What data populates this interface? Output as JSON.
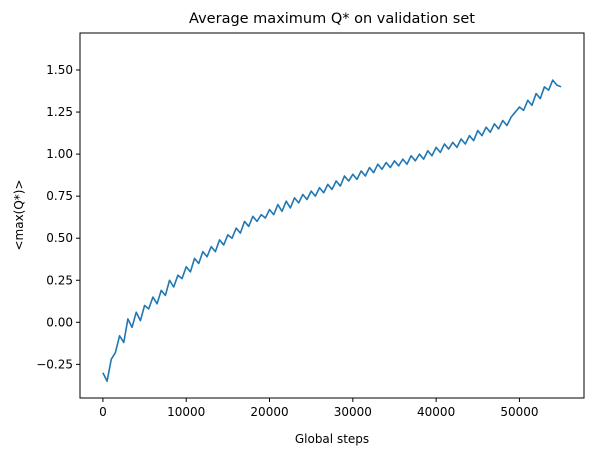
{
  "chart_data": {
    "type": "line",
    "title": "Average maximum Q* on validation set",
    "xlabel": "Global steps",
    "ylabel": "<max(Q*)>",
    "xlim": [
      -2750,
      57750
    ],
    "ylim": [
      -0.45,
      1.72
    ],
    "xticks": [
      0,
      10000,
      20000,
      30000,
      40000,
      50000
    ],
    "xtick_labels": [
      "0",
      "10000",
      "20000",
      "30000",
      "40000",
      "50000"
    ],
    "yticks": [
      -0.25,
      0,
      0.25,
      0.5,
      0.75,
      1.0,
      1.25,
      1.5
    ],
    "ytick_labels": [
      "−0.25",
      "0.00",
      "0.25",
      "0.50",
      "0.75",
      "1.00",
      "1.25",
      "1.50"
    ],
    "grid": false,
    "series": [
      {
        "name": "",
        "color": "#1f77b4",
        "x": [
          0,
          500,
          1000,
          1500,
          2000,
          2500,
          3000,
          3500,
          4000,
          4500,
          5000,
          5500,
          6000,
          6500,
          7000,
          7500,
          8000,
          8500,
          9000,
          9500,
          10000,
          10500,
          11000,
          11500,
          12000,
          12500,
          13000,
          13500,
          14000,
          14500,
          15000,
          15500,
          16000,
          16500,
          17000,
          17500,
          18000,
          18500,
          19000,
          19500,
          20000,
          20500,
          21000,
          21500,
          22000,
          22500,
          23000,
          23500,
          24000,
          24500,
          25000,
          25500,
          26000,
          26500,
          27000,
          27500,
          28000,
          28500,
          29000,
          29500,
          30000,
          30500,
          31000,
          31500,
          32000,
          32500,
          33000,
          33500,
          34000,
          34500,
          35000,
          35500,
          36000,
          36500,
          37000,
          37500,
          38000,
          38500,
          39000,
          39500,
          40000,
          40500,
          41000,
          41500,
          42000,
          42500,
          43000,
          43500,
          44000,
          44500,
          45000,
          45500,
          46000,
          46500,
          47000,
          47500,
          48000,
          48500,
          49000,
          49500,
          50000,
          50500,
          51000,
          51500,
          52000,
          52500,
          53000,
          53500,
          54000,
          54500,
          55000
        ],
        "y": [
          -0.3,
          -0.35,
          -0.22,
          -0.18,
          -0.08,
          -0.12,
          0.02,
          -0.03,
          0.06,
          0.01,
          0.1,
          0.08,
          0.15,
          0.11,
          0.19,
          0.16,
          0.25,
          0.21,
          0.28,
          0.26,
          0.33,
          0.3,
          0.38,
          0.35,
          0.42,
          0.39,
          0.45,
          0.42,
          0.49,
          0.46,
          0.52,
          0.5,
          0.56,
          0.53,
          0.6,
          0.57,
          0.63,
          0.6,
          0.64,
          0.62,
          0.67,
          0.64,
          0.7,
          0.66,
          0.72,
          0.68,
          0.74,
          0.71,
          0.76,
          0.73,
          0.78,
          0.75,
          0.8,
          0.77,
          0.82,
          0.79,
          0.84,
          0.81,
          0.87,
          0.84,
          0.88,
          0.85,
          0.9,
          0.87,
          0.92,
          0.89,
          0.94,
          0.91,
          0.95,
          0.92,
          0.96,
          0.93,
          0.97,
          0.94,
          0.99,
          0.96,
          1.0,
          0.97,
          1.02,
          0.99,
          1.04,
          1.01,
          1.06,
          1.03,
          1.07,
          1.04,
          1.09,
          1.06,
          1.11,
          1.08,
          1.14,
          1.11,
          1.16,
          1.13,
          1.18,
          1.15,
          1.2,
          1.17,
          1.22,
          1.25,
          1.28,
          1.26,
          1.32,
          1.29,
          1.36,
          1.33,
          1.4,
          1.38,
          1.44,
          1.41,
          1.4
        ]
      }
    ]
  }
}
